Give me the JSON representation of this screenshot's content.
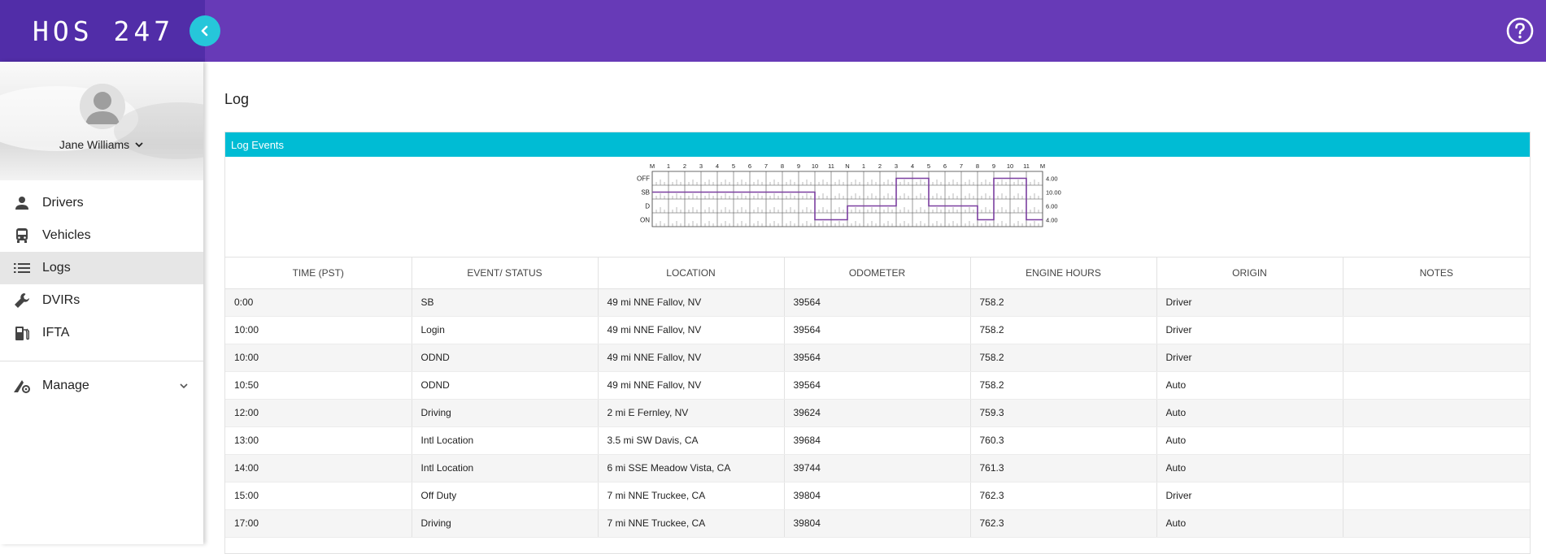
{
  "app": {
    "brand": "HOS 247"
  },
  "sidebar": {
    "user_name": "Jane Williams",
    "items": [
      {
        "label": "Drivers",
        "icon": "person-icon",
        "active": false
      },
      {
        "label": "Vehicles",
        "icon": "bus-icon",
        "active": false
      },
      {
        "label": "Logs",
        "icon": "list-icon",
        "active": true
      },
      {
        "label": "DVIRs",
        "icon": "wrench-icon",
        "active": false
      },
      {
        "label": "IFTA",
        "icon": "fuel-pump-icon",
        "active": false
      }
    ],
    "manage_label": "Manage"
  },
  "main": {
    "title": "Log",
    "card_title": "Log Events"
  },
  "log_graph": {
    "hour_labels": [
      "M",
      "1",
      "2",
      "3",
      "4",
      "5",
      "6",
      "7",
      "8",
      "9",
      "10",
      "11",
      "N",
      "1",
      "2",
      "3",
      "4",
      "5",
      "6",
      "7",
      "8",
      "9",
      "10",
      "11",
      "M"
    ],
    "status_labels": [
      "OFF",
      "SB",
      "D",
      "ON"
    ],
    "totals": [
      "4.00",
      "10.00",
      "6.00",
      "4.00"
    ],
    "segments": [
      {
        "status": "SB",
        "from": 0,
        "to": 10
      },
      {
        "status": "ON",
        "from": 10,
        "to": 12
      },
      {
        "status": "D",
        "from": 12,
        "to": 15
      },
      {
        "status": "OFF",
        "from": 15,
        "to": 17
      },
      {
        "status": "D",
        "from": 17,
        "to": 20
      },
      {
        "status": "ON",
        "from": 20,
        "to": 21
      },
      {
        "status": "OFF",
        "from": 21,
        "to": 23
      },
      {
        "status": "ON",
        "from": 23,
        "to": 24
      }
    ],
    "line_color": "#7b3fa0"
  },
  "table": {
    "columns": [
      "TIME (PST)",
      "EVENT/ STATUS",
      "LOCATION",
      "ODOMETER",
      "ENGINE HOURS",
      "ORIGIN",
      "NOTES"
    ],
    "rows": [
      [
        "0:00",
        "SB",
        "49 mi NNE Fallov, NV",
        "39564",
        "758.2",
        "Driver",
        ""
      ],
      [
        "10:00",
        "Login",
        "49 mi NNE Fallov, NV",
        "39564",
        "758.2",
        "Driver",
        ""
      ],
      [
        "10:00",
        "ODND",
        "49 mi NNE Fallov, NV",
        "39564",
        "758.2",
        "Driver",
        ""
      ],
      [
        "10:50",
        "ODND",
        "49 mi NNE Fallov, NV",
        "39564",
        "758.2",
        "Auto",
        ""
      ],
      [
        "12:00",
        "Driving",
        "2 mi E Fernley, NV",
        "39624",
        "759.3",
        "Auto",
        ""
      ],
      [
        "13:00",
        "Intl Location",
        "3.5 mi SW Davis, CA",
        "39684",
        "760.3",
        "Auto",
        ""
      ],
      [
        "14:00",
        "Intl Location",
        "6 mi SSE Meadow Vista, CA",
        "39744",
        "761.3",
        "Auto",
        ""
      ],
      [
        "15:00",
        "Off Duty",
        "7 mi NNE Truckee, CA",
        "39804",
        "762.3",
        "Driver",
        ""
      ],
      [
        "17:00",
        "Driving",
        "7 mi NNE Truckee, CA",
        "39804",
        "762.3",
        "Auto",
        ""
      ]
    ]
  },
  "colors": {
    "topbar": "#673ab7",
    "brand_bg": "#512da8",
    "accent": "#26c6da",
    "card_header": "#00bcd4"
  }
}
